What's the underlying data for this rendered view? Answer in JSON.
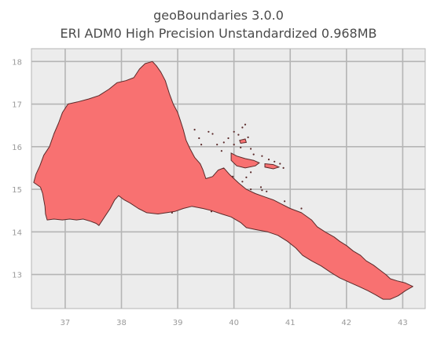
{
  "title_line1": "geoBoundaries 3.0.0",
  "title_line2": "ERI ADM0 High Precision Unstandardized 0.968MB",
  "chart_data": {
    "type": "map",
    "grid": true,
    "xlim": [
      36.4,
      43.4
    ],
    "ylim": [
      12.2,
      18.3
    ],
    "x_ticks": [
      "37",
      "38",
      "39",
      "40",
      "41",
      "42",
      "43"
    ],
    "y_ticks": [
      "13",
      "14",
      "15",
      "16",
      "17",
      "18"
    ],
    "fill_color": "#f87171",
    "edge_color": "#5a2a2a",
    "panel_color": "#ececec",
    "grid_color": "#b5b5b5",
    "mainland": [
      [
        36.44,
        15.16
      ],
      [
        36.56,
        15.05
      ],
      [
        36.6,
        14.9
      ],
      [
        36.62,
        14.75
      ],
      [
        36.64,
        14.6
      ],
      [
        36.65,
        14.42
      ],
      [
        36.68,
        14.28
      ],
      [
        36.8,
        14.3
      ],
      [
        36.95,
        14.28
      ],
      [
        37.08,
        14.3
      ],
      [
        37.2,
        14.28
      ],
      [
        37.32,
        14.3
      ],
      [
        37.45,
        14.25
      ],
      [
        37.55,
        14.2
      ],
      [
        37.6,
        14.15
      ],
      [
        37.7,
        14.35
      ],
      [
        37.8,
        14.55
      ],
      [
        37.88,
        14.75
      ],
      [
        37.95,
        14.85
      ],
      [
        38.05,
        14.75
      ],
      [
        38.15,
        14.68
      ],
      [
        38.3,
        14.55
      ],
      [
        38.45,
        14.45
      ],
      [
        38.65,
        14.42
      ],
      [
        38.8,
        14.45
      ],
      [
        38.95,
        14.48
      ],
      [
        39.1,
        14.55
      ],
      [
        39.25,
        14.6
      ],
      [
        39.45,
        14.55
      ],
      [
        39.6,
        14.5
      ],
      [
        39.78,
        14.42
      ],
      [
        39.95,
        14.35
      ],
      [
        40.12,
        14.22
      ],
      [
        40.22,
        14.1
      ],
      [
        40.4,
        14.05
      ],
      [
        40.6,
        14.0
      ],
      [
        40.78,
        13.92
      ],
      [
        40.95,
        13.78
      ],
      [
        41.1,
        13.62
      ],
      [
        41.22,
        13.45
      ],
      [
        41.38,
        13.32
      ],
      [
        41.55,
        13.2
      ],
      [
        41.72,
        13.05
      ],
      [
        41.88,
        12.92
      ],
      [
        42.05,
        12.82
      ],
      [
        42.22,
        12.72
      ],
      [
        42.38,
        12.62
      ],
      [
        42.52,
        12.52
      ],
      [
        42.65,
        12.42
      ],
      [
        42.78,
        12.42
      ],
      [
        42.92,
        12.5
      ],
      [
        43.05,
        12.62
      ],
      [
        43.18,
        12.72
      ],
      [
        43.05,
        12.8
      ],
      [
        42.9,
        12.85
      ],
      [
        42.78,
        12.9
      ],
      [
        42.7,
        13.0
      ],
      [
        42.58,
        13.12
      ],
      [
        42.48,
        13.22
      ],
      [
        42.35,
        13.32
      ],
      [
        42.25,
        13.45
      ],
      [
        42.12,
        13.55
      ],
      [
        42.0,
        13.68
      ],
      [
        41.88,
        13.78
      ],
      [
        41.78,
        13.88
      ],
      [
        41.62,
        14.0
      ],
      [
        41.48,
        14.12
      ],
      [
        41.38,
        14.28
      ],
      [
        41.2,
        14.45
      ],
      [
        41.0,
        14.55
      ],
      [
        40.85,
        14.65
      ],
      [
        40.7,
        14.75
      ],
      [
        40.55,
        14.82
      ],
      [
        40.38,
        14.9
      ],
      [
        40.22,
        15.0
      ],
      [
        40.08,
        15.15
      ],
      [
        39.92,
        15.35
      ],
      [
        39.82,
        15.5
      ],
      [
        39.72,
        15.45
      ],
      [
        39.62,
        15.3
      ],
      [
        39.5,
        15.25
      ],
      [
        39.45,
        15.45
      ],
      [
        39.4,
        15.6
      ],
      [
        39.3,
        15.75
      ],
      [
        39.22,
        15.95
      ],
      [
        39.15,
        16.15
      ],
      [
        39.1,
        16.4
      ],
      [
        39.05,
        16.6
      ],
      [
        39.0,
        16.8
      ],
      [
        38.92,
        17.0
      ],
      [
        38.85,
        17.25
      ],
      [
        38.78,
        17.55
      ],
      [
        38.7,
        17.75
      ],
      [
        38.62,
        17.9
      ],
      [
        38.55,
        18.0
      ],
      [
        38.42,
        17.95
      ],
      [
        38.32,
        17.82
      ],
      [
        38.22,
        17.62
      ],
      [
        38.08,
        17.55
      ],
      [
        37.92,
        17.5
      ],
      [
        37.78,
        17.35
      ],
      [
        37.6,
        17.2
      ],
      [
        37.42,
        17.12
      ],
      [
        37.22,
        17.05
      ],
      [
        37.05,
        17.0
      ],
      [
        36.95,
        16.8
      ],
      [
        36.88,
        16.55
      ],
      [
        36.8,
        16.3
      ],
      [
        36.72,
        16.0
      ],
      [
        36.62,
        15.8
      ],
      [
        36.55,
        15.55
      ],
      [
        36.48,
        15.35
      ],
      [
        36.44,
        15.16
      ]
    ],
    "islands": [
      [
        [
          39.95,
          15.85
        ],
        [
          40.05,
          15.78
        ],
        [
          40.2,
          15.72
        ],
        [
          40.35,
          15.68
        ],
        [
          40.45,
          15.62
        ],
        [
          40.38,
          15.55
        ],
        [
          40.2,
          15.5
        ],
        [
          40.05,
          15.55
        ],
        [
          39.95,
          15.68
        ],
        [
          39.95,
          15.85
        ]
      ],
      [
        [
          40.55,
          15.6
        ],
        [
          40.7,
          15.58
        ],
        [
          40.8,
          15.52
        ],
        [
          40.7,
          15.48
        ],
        [
          40.55,
          15.52
        ],
        [
          40.55,
          15.6
        ]
      ],
      [
        [
          40.1,
          16.15
        ],
        [
          40.2,
          16.18
        ],
        [
          40.22,
          16.1
        ],
        [
          40.12,
          16.08
        ],
        [
          40.1,
          16.15
        ]
      ]
    ],
    "islets": [
      [
        39.3,
        16.4
      ],
      [
        39.38,
        16.2
      ],
      [
        39.42,
        16.05
      ],
      [
        39.55,
        16.35
      ],
      [
        39.62,
        16.3
      ],
      [
        39.7,
        16.05
      ],
      [
        39.78,
        15.9
      ],
      [
        39.82,
        16.1
      ],
      [
        39.9,
        16.2
      ],
      [
        40.0,
        16.35
      ],
      [
        40.15,
        16.45
      ],
      [
        40.2,
        16.52
      ],
      [
        40.08,
        16.28
      ],
      [
        40.0,
        16.05
      ],
      [
        40.12,
        15.98
      ],
      [
        40.3,
        15.95
      ],
      [
        40.25,
        16.22
      ],
      [
        40.35,
        15.82
      ],
      [
        40.5,
        15.78
      ],
      [
        40.62,
        15.7
      ],
      [
        40.72,
        15.65
      ],
      [
        40.82,
        15.6
      ],
      [
        40.88,
        15.5
      ],
      [
        40.3,
        15.4
      ],
      [
        40.22,
        15.28
      ],
      [
        40.15,
        15.18
      ],
      [
        40.3,
        15.0
      ],
      [
        40.5,
        14.98
      ],
      [
        40.58,
        14.95
      ],
      [
        39.98,
        15.3
      ],
      [
        39.6,
        14.48
      ],
      [
        38.9,
        14.45
      ],
      [
        40.48,
        15.05
      ],
      [
        40.9,
        14.72
      ],
      [
        41.2,
        14.55
      ]
    ]
  }
}
